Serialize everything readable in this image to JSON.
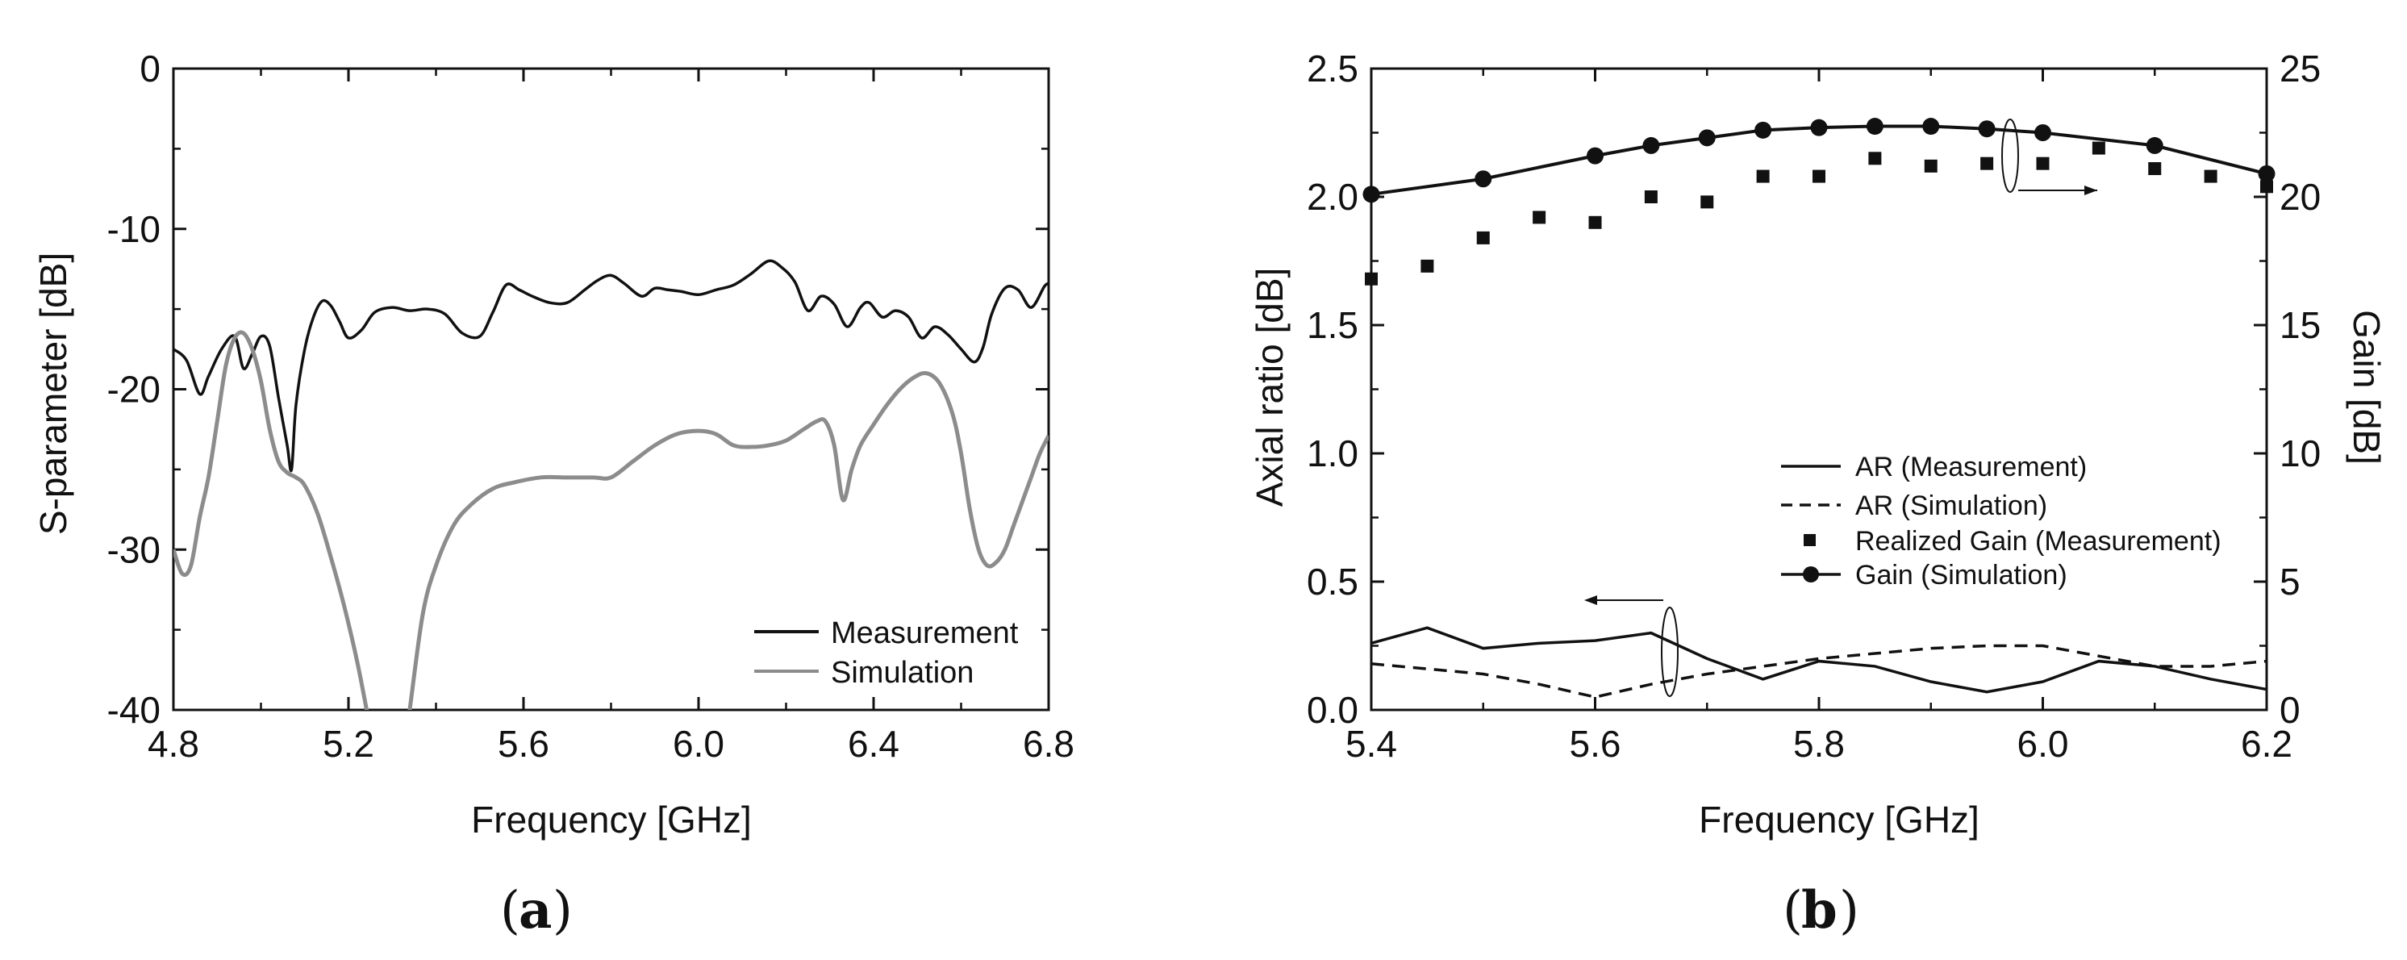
{
  "colors": {
    "measurement": "#111111",
    "simulation": "#8c8c8c",
    "axis": "#111111"
  },
  "chart_data": [
    {
      "id": "a",
      "type": "line",
      "panel_label": "a",
      "xlabel": "Frequency [GHz]",
      "ylabel": "S-parameter [dB]",
      "xlim": [
        4.8,
        6.8
      ],
      "ylim": [
        -40,
        0
      ],
      "xticks": [
        "4.8",
        "5.2",
        "5.6",
        "6.0",
        "6.4",
        "6.8"
      ],
      "xtick_values": [
        4.8,
        5.2,
        5.6,
        6.0,
        6.4,
        6.8
      ],
      "yticks": [
        "-40",
        "-30",
        "-20",
        "-10",
        "0"
      ],
      "ytick_values": [
        -40,
        -30,
        -20,
        -10,
        0
      ],
      "legend_position": "bottom-right",
      "series": [
        {
          "name": "Measurement",
          "style": "solid",
          "color": "#111111",
          "x": [
            4.8,
            4.83,
            4.86,
            4.88,
            4.91,
            4.94,
            4.96,
            4.98,
            5.0,
            5.02,
            5.04,
            5.06,
            5.07,
            5.08,
            5.1,
            5.12,
            5.14,
            5.16,
            5.18,
            5.2,
            5.23,
            5.26,
            5.3,
            5.34,
            5.38,
            5.42,
            5.46,
            5.5,
            5.53,
            5.56,
            5.59,
            5.62,
            5.66,
            5.7,
            5.74,
            5.77,
            5.8,
            5.83,
            5.87,
            5.9,
            5.93,
            5.96,
            6.0,
            6.04,
            6.08,
            6.12,
            6.16,
            6.19,
            6.22,
            6.25,
            6.28,
            6.31,
            6.34,
            6.37,
            6.39,
            6.42,
            6.45,
            6.48,
            6.51,
            6.54,
            6.57,
            6.6,
            6.63,
            6.65,
            6.67,
            6.7,
            6.73,
            6.76,
            6.79,
            6.8
          ],
          "y": [
            -17.5,
            -18.2,
            -20.3,
            -19.2,
            -17.5,
            -16.7,
            -18.7,
            -17.8,
            -16.7,
            -17.3,
            -20.5,
            -23.5,
            -25.0,
            -21.0,
            -17.5,
            -15.5,
            -14.5,
            -14.8,
            -15.8,
            -16.8,
            -16.3,
            -15.2,
            -14.9,
            -15.1,
            -15.0,
            -15.3,
            -16.5,
            -16.7,
            -15.2,
            -13.5,
            -13.8,
            -14.2,
            -14.6,
            -14.6,
            -13.8,
            -13.2,
            -12.9,
            -13.4,
            -14.2,
            -13.7,
            -13.8,
            -13.9,
            -14.1,
            -13.8,
            -13.5,
            -12.8,
            -12.0,
            -12.4,
            -13.3,
            -15.1,
            -14.2,
            -14.7,
            -16.1,
            -14.9,
            -14.6,
            -15.5,
            -15.1,
            -15.5,
            -16.8,
            -16.1,
            -16.6,
            -17.5,
            -18.3,
            -17.4,
            -15.3,
            -13.7,
            -13.8,
            -14.9,
            -13.6,
            -13.4
          ]
        },
        {
          "name": "Simulation",
          "style": "solid",
          "color": "#8c8c8c",
          "x": [
            4.8,
            4.82,
            4.84,
            4.86,
            4.88,
            4.9,
            4.92,
            4.94,
            4.96,
            4.98,
            5.0,
            5.02,
            5.04,
            5.06,
            5.08,
            5.1,
            5.13,
            5.16,
            5.19,
            5.22,
            5.245,
            5.255,
            5.33,
            5.34,
            5.37,
            5.4,
            5.44,
            5.48,
            5.53,
            5.58,
            5.64,
            5.7,
            5.76,
            5.8,
            5.85,
            5.9,
            5.95,
            6.0,
            6.04,
            6.08,
            6.12,
            6.16,
            6.2,
            6.24,
            6.27,
            6.29,
            6.31,
            6.33,
            6.35,
            6.37,
            6.4,
            6.43,
            6.46,
            6.49,
            6.52,
            6.55,
            6.58,
            6.6,
            6.62,
            6.64,
            6.66,
            6.68,
            6.7,
            6.72,
            6.74,
            6.76,
            6.78,
            6.8
          ],
          "y": [
            -30.0,
            -31.5,
            -31.0,
            -28.0,
            -25.5,
            -22.0,
            -18.5,
            -16.8,
            -16.5,
            -17.5,
            -19.5,
            -22.5,
            -24.5,
            -25.2,
            -25.5,
            -26.0,
            -27.8,
            -30.5,
            -33.5,
            -37.0,
            -40.5,
            -42.0,
            -42.0,
            -40.0,
            -34.0,
            -31.0,
            -28.5,
            -27.2,
            -26.2,
            -25.8,
            -25.5,
            -25.5,
            -25.5,
            -25.5,
            -24.5,
            -23.5,
            -22.8,
            -22.6,
            -22.8,
            -23.5,
            -23.6,
            -23.5,
            -23.2,
            -22.5,
            -22.0,
            -22.0,
            -23.5,
            -26.9,
            -25.0,
            -23.5,
            -22.2,
            -21.0,
            -20.0,
            -19.3,
            -19.0,
            -19.6,
            -21.5,
            -24.0,
            -27.5,
            -30.0,
            -31.0,
            -30.8,
            -30.0,
            -28.5,
            -27.0,
            -25.5,
            -24.0,
            -22.9
          ]
        }
      ]
    },
    {
      "id": "b",
      "type": "line",
      "panel_label": "b",
      "xlabel": "Frequency [GHz]",
      "ylabel": "Axial ratio [dB]",
      "ylabel_right": "Gain [dB]",
      "xlim": [
        5.4,
        6.2
      ],
      "ylim": [
        0,
        2.5
      ],
      "ylim_right": [
        0,
        25
      ],
      "xticks": [
        "5.4",
        "5.6",
        "5.8",
        "6.0",
        "6.2"
      ],
      "xtick_values": [
        5.4,
        5.6,
        5.8,
        6.0,
        6.2
      ],
      "yticks": [
        "0.0",
        "0.5",
        "1.0",
        "1.5",
        "2.0",
        "2.5"
      ],
      "ytick_values": [
        0,
        0.5,
        1.0,
        1.5,
        2.0,
        2.5
      ],
      "yticks_right": [
        "0",
        "5",
        "10",
        "15",
        "20",
        "25"
      ],
      "ytick_values_right": [
        0,
        5,
        10,
        15,
        20,
        25
      ],
      "legend_position": "center-right",
      "series": [
        {
          "name": "AR (Measurement)",
          "axis": "left",
          "style": "solid",
          "x": [
            5.4,
            5.45,
            5.5,
            5.55,
            5.6,
            5.65,
            5.7,
            5.75,
            5.8,
            5.85,
            5.9,
            5.95,
            6.0,
            6.05,
            6.1,
            6.15,
            6.2
          ],
          "y": [
            0.26,
            0.32,
            0.24,
            0.26,
            0.27,
            0.3,
            0.2,
            0.12,
            0.19,
            0.17,
            0.11,
            0.07,
            0.11,
            0.19,
            0.17,
            0.12,
            0.08
          ]
        },
        {
          "name": "AR (Simulation)",
          "axis": "left",
          "style": "dashed",
          "x": [
            5.4,
            5.45,
            5.5,
            5.55,
            5.6,
            5.65,
            5.7,
            5.75,
            5.8,
            5.85,
            5.9,
            5.95,
            6.0,
            6.05,
            6.1,
            6.15,
            6.2
          ],
          "y": [
            0.18,
            0.16,
            0.14,
            0.1,
            0.05,
            0.1,
            0.14,
            0.17,
            0.2,
            0.22,
            0.24,
            0.25,
            0.25,
            0.21,
            0.17,
            0.17,
            0.19
          ]
        },
        {
          "name": "Realized Gain (Measurement)",
          "axis": "right",
          "style": "squares",
          "x": [
            5.4,
            5.45,
            5.5,
            5.55,
            5.6,
            5.65,
            5.7,
            5.75,
            5.8,
            5.85,
            5.9,
            5.95,
            6.0,
            6.05,
            6.1,
            6.15,
            6.2
          ],
          "y": [
            16.8,
            17.3,
            18.4,
            19.2,
            19.0,
            20.0,
            19.8,
            20.8,
            20.8,
            21.5,
            21.2,
            21.3,
            21.3,
            21.9,
            21.1,
            20.8,
            20.4
          ]
        },
        {
          "name": "Gain (Simulation)",
          "axis": "right",
          "style": "line-circles",
          "x": [
            5.4,
            5.5,
            5.6,
            5.65,
            5.7,
            5.75,
            5.8,
            5.85,
            5.9,
            5.95,
            6.0,
            6.1,
            6.2
          ],
          "y": [
            20.1,
            20.7,
            21.6,
            22.0,
            22.3,
            22.6,
            22.7,
            22.75,
            22.75,
            22.65,
            22.5,
            22.0,
            20.9
          ]
        }
      ],
      "annotations": [
        "left-arrow-on-AR-curves",
        "right-arrow-on-gain-curves"
      ]
    }
  ]
}
